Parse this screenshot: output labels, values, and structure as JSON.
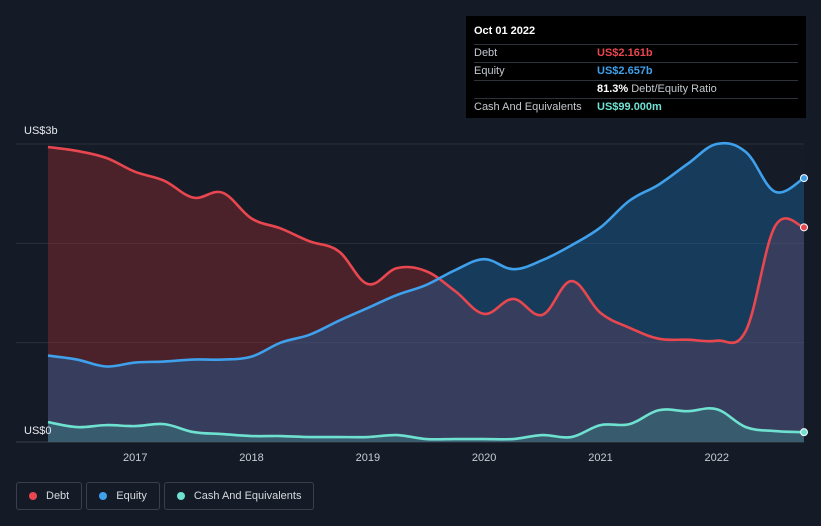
{
  "tooltip": {
    "date": "Oct 01 2022",
    "rows": [
      {
        "label": "Debt",
        "value": "US$2.161b",
        "color": "#e8474f"
      },
      {
        "label": "Equity",
        "value": "US$2.657b",
        "color": "#3fa0ec"
      },
      {
        "label": "",
        "ratio": "81.3%",
        "ratio_label": "Debt/Equity Ratio"
      },
      {
        "label": "Cash And Equivalents",
        "value": "US$99.000m",
        "color": "#6fe1d1"
      }
    ]
  },
  "legend": [
    {
      "label": "Debt",
      "color": "#e8474f"
    },
    {
      "label": "Equity",
      "color": "#3fa0ec"
    },
    {
      "label": "Cash And Equivalents",
      "color": "#6fe1d1"
    }
  ],
  "chart_data": {
    "type": "area",
    "ylabel_top": "US$3b",
    "ylabel_bottom": "US$0",
    "ylim": [
      0,
      3.0
    ],
    "xlim": [
      2016.25,
      2022.75
    ],
    "x_ticks": [
      "2017",
      "2018",
      "2019",
      "2020",
      "2021",
      "2022"
    ],
    "grid": true,
    "series": [
      {
        "name": "Debt",
        "color": "#e8474f",
        "x": [
          2016.25,
          2016.5,
          2016.75,
          2017.0,
          2017.25,
          2017.5,
          2017.75,
          2018.0,
          2018.25,
          2018.5,
          2018.75,
          2019.0,
          2019.25,
          2019.5,
          2019.75,
          2020.0,
          2020.25,
          2020.5,
          2020.75,
          2021.0,
          2021.25,
          2021.5,
          2021.75,
          2022.0,
          2022.25,
          2022.5,
          2022.75
        ],
        "values": [
          2.97,
          2.93,
          2.86,
          2.72,
          2.63,
          2.46,
          2.51,
          2.25,
          2.15,
          2.02,
          1.92,
          1.59,
          1.75,
          1.72,
          1.52,
          1.29,
          1.44,
          1.28,
          1.62,
          1.3,
          1.15,
          1.04,
          1.03,
          1.02,
          1.12,
          2.17,
          2.161
        ]
      },
      {
        "name": "Equity",
        "color": "#3fa0ec",
        "x": [
          2016.25,
          2016.5,
          2016.75,
          2017.0,
          2017.25,
          2017.5,
          2017.75,
          2018.0,
          2018.25,
          2018.5,
          2018.75,
          2019.0,
          2019.25,
          2019.5,
          2019.75,
          2020.0,
          2020.25,
          2020.5,
          2020.75,
          2021.0,
          2021.25,
          2021.5,
          2021.75,
          2022.0,
          2022.25,
          2022.5,
          2022.75
        ],
        "values": [
          0.87,
          0.83,
          0.76,
          0.8,
          0.81,
          0.83,
          0.83,
          0.86,
          1.0,
          1.08,
          1.22,
          1.35,
          1.48,
          1.58,
          1.73,
          1.84,
          1.74,
          1.83,
          1.98,
          2.16,
          2.43,
          2.59,
          2.8,
          3.0,
          2.92,
          2.52,
          2.657
        ]
      },
      {
        "name": "Cash And Equivalents",
        "color": "#6fe1d1",
        "x": [
          2016.25,
          2016.5,
          2016.75,
          2017.0,
          2017.25,
          2017.5,
          2017.75,
          2018.0,
          2018.25,
          2018.5,
          2018.75,
          2019.0,
          2019.25,
          2019.5,
          2019.75,
          2020.0,
          2020.25,
          2020.5,
          2020.75,
          2021.0,
          2021.25,
          2021.5,
          2021.75,
          2022.0,
          2022.25,
          2022.5,
          2022.75
        ],
        "values": [
          0.2,
          0.15,
          0.17,
          0.16,
          0.18,
          0.1,
          0.08,
          0.06,
          0.06,
          0.05,
          0.05,
          0.05,
          0.07,
          0.03,
          0.03,
          0.03,
          0.03,
          0.07,
          0.05,
          0.17,
          0.18,
          0.32,
          0.31,
          0.33,
          0.15,
          0.11,
          0.099
        ]
      }
    ]
  }
}
